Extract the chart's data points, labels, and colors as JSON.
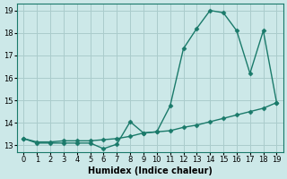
{
  "xlabel": "Humidex (Indice chaleur)",
  "background_color": "#cce8e8",
  "grid_color": "#aacccc",
  "line_color": "#1a7a6a",
  "xlim": [
    -0.5,
    19.5
  ],
  "ylim": [
    12.7,
    19.3
  ],
  "xticks": [
    0,
    1,
    2,
    3,
    4,
    5,
    6,
    7,
    8,
    9,
    10,
    11,
    12,
    13,
    14,
    15,
    16,
    17,
    18,
    19
  ],
  "yticks": [
    13,
    14,
    15,
    16,
    17,
    18,
    19
  ],
  "line1_x": [
    0,
    1,
    2,
    3,
    4,
    5,
    6,
    7,
    8,
    9,
    10,
    11,
    12,
    13,
    14,
    15,
    16,
    17,
    18,
    19
  ],
  "line1_y": [
    13.3,
    13.1,
    13.1,
    13.1,
    13.1,
    13.1,
    12.85,
    13.05,
    14.05,
    13.55,
    13.6,
    14.75,
    17.3,
    18.2,
    19.0,
    18.9,
    18.1,
    16.2,
    18.1,
    14.9
  ],
  "line2_x": [
    0,
    1,
    2,
    3,
    4,
    5,
    6,
    7,
    8,
    9,
    10,
    11,
    12,
    13,
    14,
    15,
    16,
    17,
    18,
    19
  ],
  "line2_y": [
    13.3,
    13.15,
    13.15,
    13.2,
    13.2,
    13.2,
    13.25,
    13.3,
    13.4,
    13.55,
    13.6,
    13.65,
    13.8,
    13.9,
    14.05,
    14.2,
    14.35,
    14.5,
    14.65,
    14.9
  ],
  "markersize": 2.5,
  "linewidth": 1.0
}
